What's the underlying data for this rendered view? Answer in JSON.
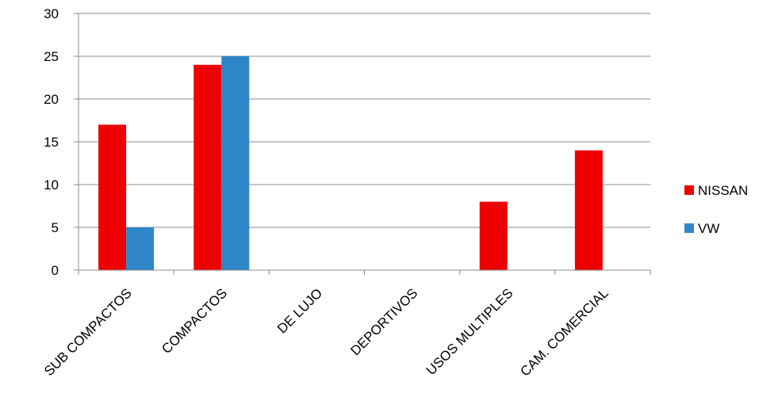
{
  "chart_data": {
    "type": "bar",
    "title": "",
    "xlabel": "",
    "ylabel": "",
    "categories": [
      "SUB COMPACTOS",
      "COMPACTOS",
      "DE LUJO",
      "DEPORTIVOS",
      "USOS MULTIPLES",
      "CAM. COMERCIAL"
    ],
    "series": [
      {
        "name": "NISSAN",
        "color": "#ee0000",
        "values": [
          17,
          24,
          0,
          0,
          8,
          14
        ]
      },
      {
        "name": "VW",
        "color": "#2e86c9",
        "values": [
          5,
          25,
          0,
          0,
          0,
          0
        ]
      }
    ],
    "ylim": [
      0,
      30
    ],
    "yticks": [
      0,
      5,
      10,
      15,
      20,
      25,
      30
    ],
    "grid": true,
    "legend": "right"
  }
}
